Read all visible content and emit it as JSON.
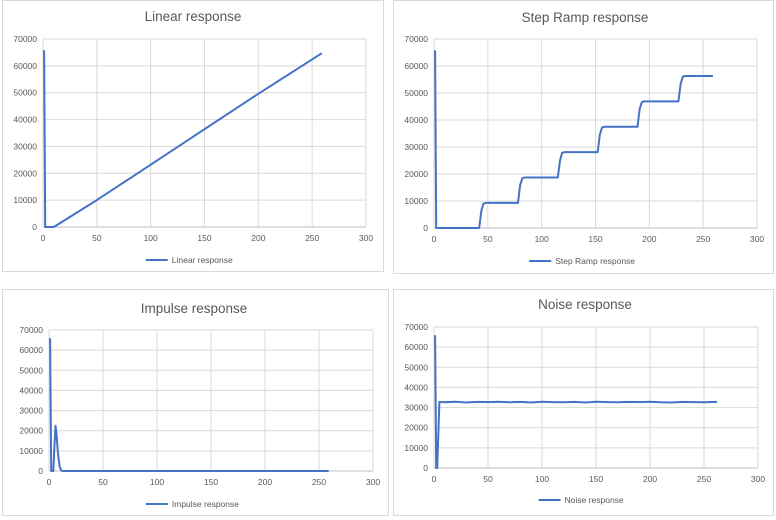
{
  "chart_data": [
    {
      "type": "line",
      "title": "Linear response",
      "xlim": [
        0,
        300
      ],
      "ylim": [
        0,
        70000
      ],
      "xticks": [
        "0",
        "50",
        "100",
        "150",
        "200",
        "250",
        "300"
      ],
      "yticks": [
        "0",
        "10000",
        "20000",
        "30000",
        "40000",
        "50000",
        "60000",
        "70000"
      ],
      "grid": true,
      "legend_position": "bottom",
      "series": [
        {
          "name": "Linear response",
          "color": "#4472c4",
          "x": [
            0,
            1,
            2,
            3,
            10,
            50,
            100,
            150,
            200,
            259
          ],
          "y": [
            65500,
            65500,
            0,
            0,
            0,
            10000,
            23200,
            36400,
            49600,
            64700
          ]
        }
      ]
    },
    {
      "type": "line",
      "title": "Step Ramp response",
      "xlim": [
        0,
        300
      ],
      "ylim": [
        0,
        70000
      ],
      "xticks": [
        "0",
        "50",
        "100",
        "150",
        "200",
        "250",
        "300"
      ],
      "yticks": [
        "0",
        "10000",
        "20000",
        "30000",
        "40000",
        "50000",
        "60000",
        "70000"
      ],
      "grid": true,
      "legend_position": "bottom",
      "series": [
        {
          "name": "Step Ramp response",
          "color": "#4472c4",
          "x": [
            0,
            1,
            2,
            3,
            42,
            44,
            46,
            48,
            78,
            80,
            82,
            84,
            115,
            117,
            119,
            121,
            152,
            154,
            156,
            158,
            189,
            191,
            193,
            195,
            227,
            229,
            231,
            233,
            259
          ],
          "y": [
            65500,
            65500,
            0,
            0,
            0,
            6500,
            9000,
            9300,
            9300,
            15800,
            18400,
            18700,
            18700,
            25000,
            27800,
            28100,
            28100,
            34500,
            37200,
            37500,
            37500,
            44000,
            46600,
            46900,
            46900,
            53300,
            56000,
            56300,
            56300
          ]
        }
      ]
    },
    {
      "type": "line",
      "title": "Impulse response",
      "xlim": [
        0,
        300
      ],
      "ylim": [
        0,
        70000
      ],
      "xticks": [
        "0",
        "50",
        "100",
        "150",
        "200",
        "250",
        "300"
      ],
      "yticks": [
        "0",
        "10000",
        "20000",
        "30000",
        "40000",
        "50000",
        "60000",
        "70000"
      ],
      "grid": true,
      "legend_position": "bottom",
      "series": [
        {
          "name": "Impulse response",
          "color": "#4472c4",
          "x": [
            0,
            1,
            2,
            3,
            4,
            5,
            6,
            7,
            8,
            9,
            10,
            11,
            12,
            15,
            259
          ],
          "y": [
            65500,
            65500,
            0,
            0,
            0,
            12000,
            22500,
            18000,
            11000,
            5500,
            2000,
            600,
            0,
            0,
            0
          ]
        }
      ]
    },
    {
      "type": "line",
      "title": "Noise response",
      "xlim": [
        0,
        300
      ],
      "ylim": [
        0,
        70000
      ],
      "xticks": [
        "0",
        "50",
        "100",
        "150",
        "200",
        "250",
        "300"
      ],
      "yticks": [
        "0",
        "10000",
        "20000",
        "30000",
        "40000",
        "50000",
        "60000",
        "70000"
      ],
      "grid": true,
      "legend_position": "bottom",
      "series": [
        {
          "name": "Noise response",
          "color": "#4472c4",
          "x": [
            0,
            1,
            2,
            3,
            5,
            10,
            20,
            30,
            40,
            50,
            60,
            70,
            80,
            90,
            100,
            110,
            120,
            130,
            140,
            150,
            160,
            170,
            180,
            190,
            200,
            210,
            220,
            230,
            240,
            250,
            262
          ],
          "y": [
            65500,
            65500,
            0,
            0,
            32800,
            32600,
            32900,
            32500,
            32800,
            32700,
            32900,
            32600,
            32800,
            32500,
            32900,
            32700,
            32600,
            32800,
            32500,
            32900,
            32700,
            32600,
            32800,
            32700,
            32900,
            32600,
            32500,
            32800,
            32700,
            32600,
            32800
          ]
        }
      ]
    }
  ]
}
